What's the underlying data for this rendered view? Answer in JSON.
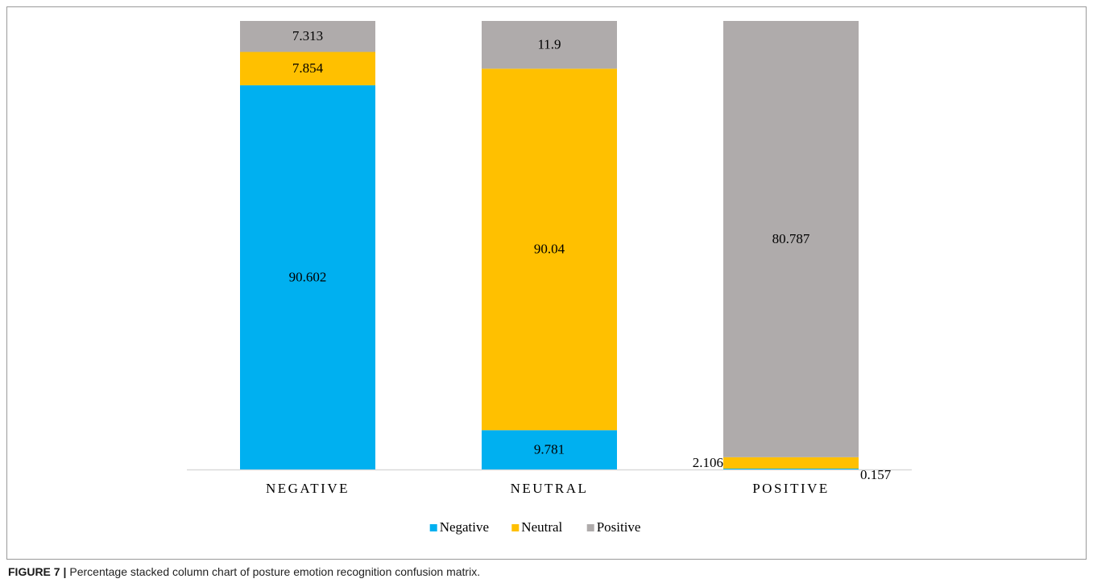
{
  "chart_data": {
    "type": "bar",
    "stacking": "percent",
    "categories": [
      "NEGATIVE",
      "NEUTRAL",
      "POSITIVE"
    ],
    "series": [
      {
        "name": "Negative",
        "color": "#00b0f0",
        "values": [
          90.602,
          9.781,
          0.157
        ]
      },
      {
        "name": "Neutral",
        "color": "#ffc000",
        "values": [
          7.854,
          90.04,
          2.106
        ]
      },
      {
        "name": "Positive",
        "color": "#afabab",
        "values": [
          7.313,
          11.9,
          80.787
        ]
      }
    ],
    "legend": "bottom",
    "caption": {
      "label": "FIGURE 7 |",
      "text": "Percentage stacked column chart of posture emotion recognition confusion matrix."
    }
  }
}
